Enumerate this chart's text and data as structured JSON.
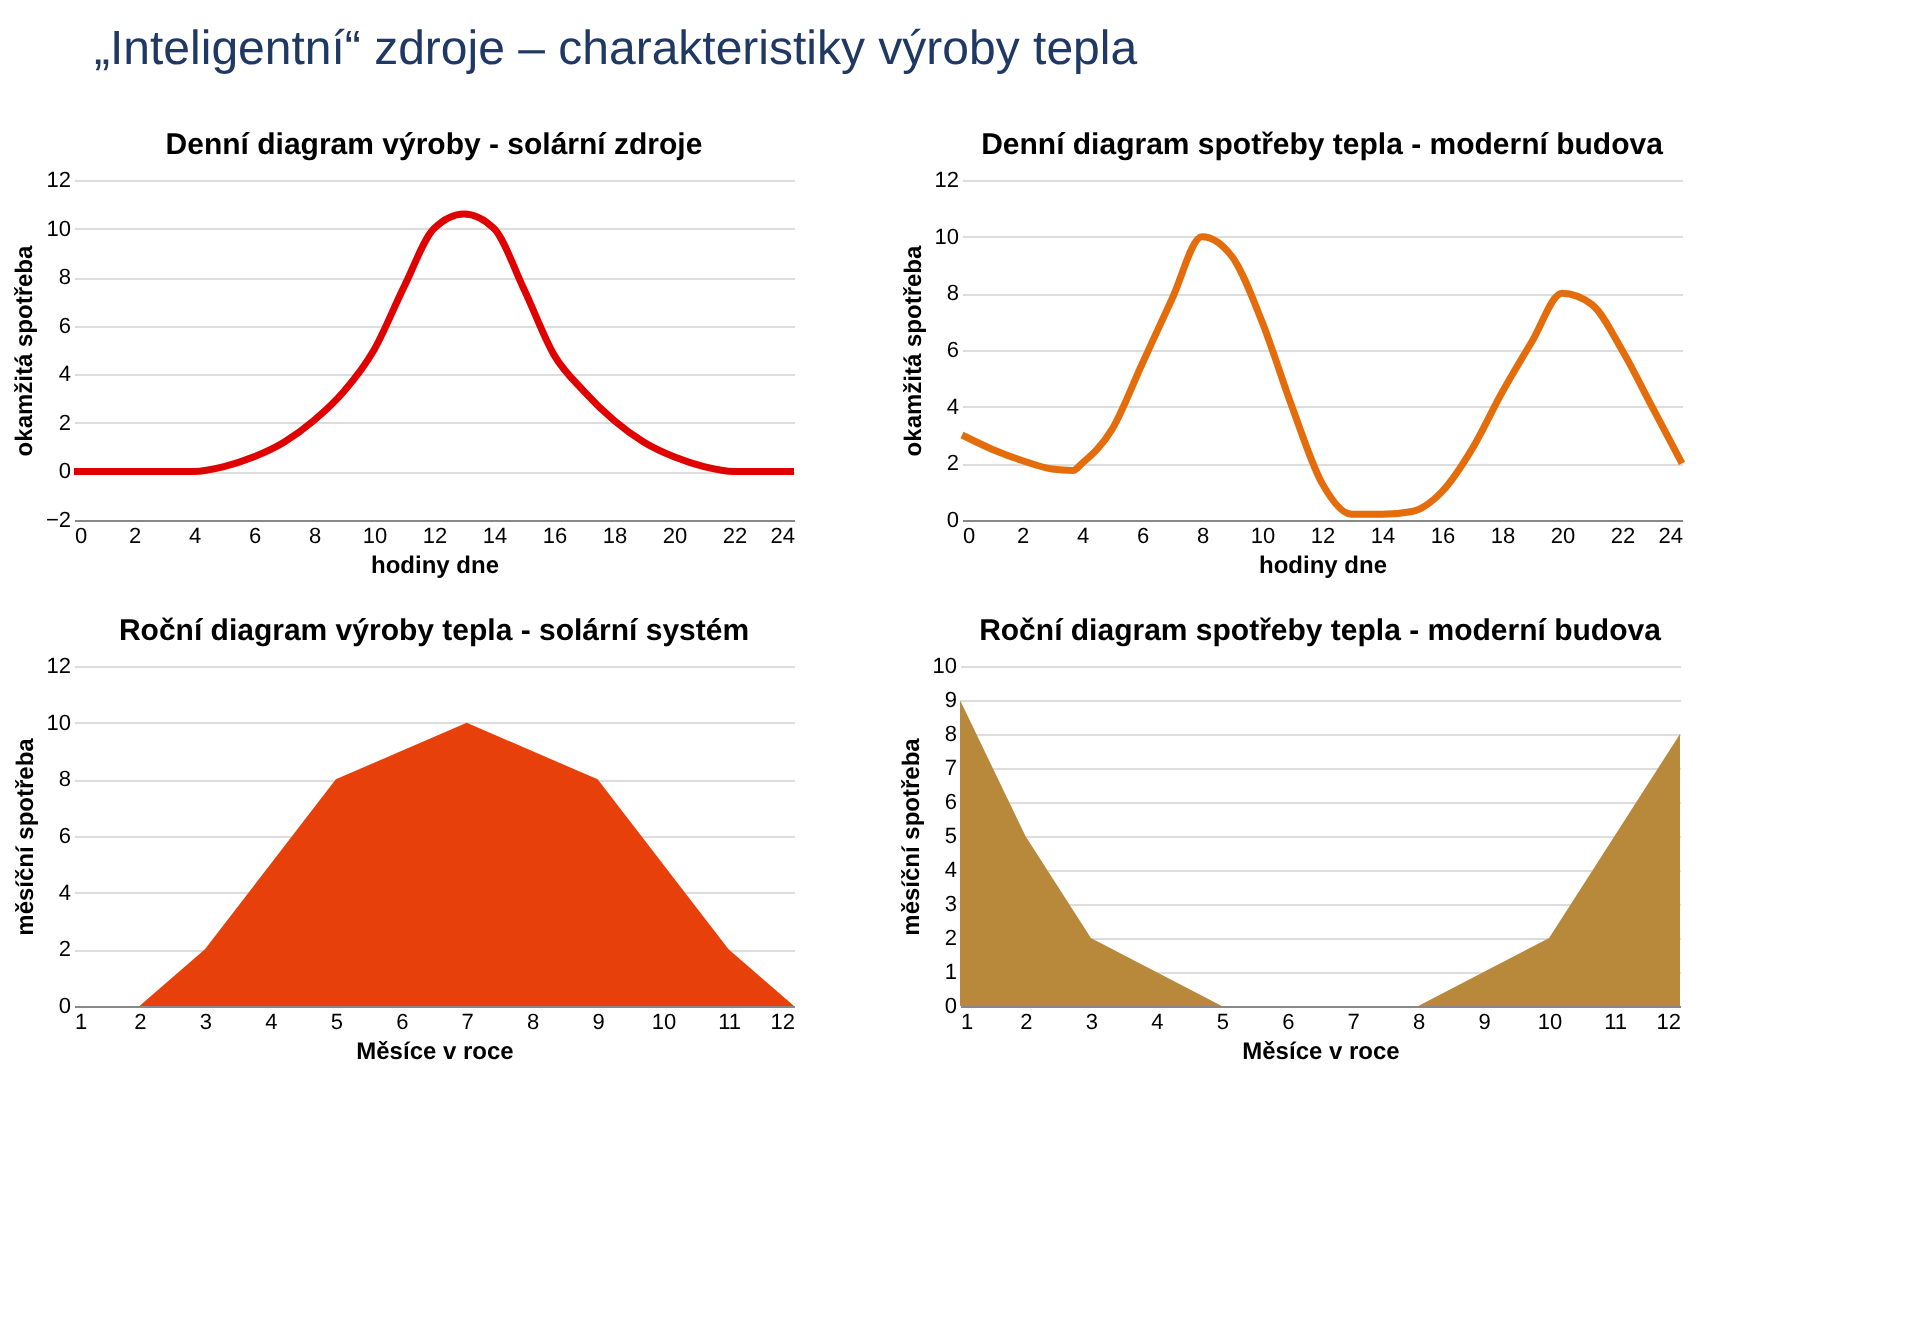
{
  "chart_data": [
    {
      "type": "other",
      "title": "„Inteligentní“ zdroje – charakteristiky výroby tepla"
    },
    {
      "type": "line",
      "title": "Denní diagram výroby - solární zdroje",
      "xlabel": "hodiny dne",
      "ylabel": "okamžitá spotřeba",
      "x": [
        0,
        2,
        3,
        4,
        5,
        6,
        7,
        8,
        9,
        10,
        11,
        12,
        13,
        14,
        15,
        16,
        17,
        18,
        19,
        20,
        21,
        22,
        23,
        24
      ],
      "series": [
        {
          "color": "#e00000",
          "values": [
            0,
            0,
            0,
            0,
            0.2,
            0.6,
            1.2,
            2.1,
            3.3,
            5,
            7.6,
            10,
            10.6,
            10,
            7.5,
            4.8,
            3.3,
            2.1,
            1.2,
            0.6,
            0.2,
            0,
            0,
            0
          ]
        }
      ],
      "xlim": [
        0,
        24
      ],
      "xticks": [
        0,
        2,
        4,
        6,
        8,
        10,
        12,
        14,
        16,
        18,
        20,
        22,
        24
      ],
      "ylim": [
        -2,
        12
      ],
      "yticks": [
        -2,
        0,
        2,
        4,
        6,
        8,
        10,
        12
      ],
      "grid": "y"
    },
    {
      "type": "line",
      "title": "Denní diagram spotřeby tepla - moderní budova",
      "xlabel": "hodiny dne",
      "ylabel": "okamžitá spotřeba",
      "x": [
        0,
        1,
        2,
        3,
        3.7,
        4,
        5,
        6,
        7,
        8,
        9,
        10,
        11,
        12,
        13,
        14,
        15,
        16,
        17,
        18,
        19,
        20,
        21,
        22,
        23,
        24
      ],
      "series": [
        {
          "color": "#e46c0a",
          "values": [
            3,
            2.5,
            2.1,
            1.8,
            1.75,
            2,
            3.2,
            5.5,
            7.8,
            10,
            9.3,
            7,
            4,
            1.3,
            0.2,
            0.2,
            0.3,
            1,
            2.5,
            4.5,
            6.3,
            8,
            7.6,
            6,
            4,
            2
          ]
        }
      ],
      "xlim": [
        0,
        24
      ],
      "xticks": [
        0,
        2,
        4,
        6,
        8,
        10,
        12,
        14,
        16,
        18,
        20,
        22,
        24
      ],
      "ylim": [
        0,
        12
      ],
      "yticks": [
        0,
        2,
        4,
        6,
        8,
        10,
        12
      ],
      "grid": "y"
    },
    {
      "type": "area",
      "title": "Roční diagram výroby tepla - solární systém",
      "xlabel": "Měsíce v roce",
      "ylabel": "měsíční spotřeba",
      "x": [
        2,
        3,
        4,
        5,
        6,
        7,
        8,
        9,
        10,
        11,
        12
      ],
      "series": [
        {
          "color": "#e8400a",
          "values": [
            0,
            2,
            5,
            8,
            9,
            10,
            9,
            8,
            5,
            2,
            0
          ]
        }
      ],
      "xlim": [
        1,
        12
      ],
      "xticks": [
        1,
        2,
        3,
        4,
        5,
        6,
        7,
        8,
        9,
        10,
        11,
        12
      ],
      "ylim": [
        0,
        12
      ],
      "yticks": [
        0,
        2,
        4,
        6,
        8,
        10,
        12
      ],
      "grid": "y"
    },
    {
      "type": "area",
      "title": "Roční diagram spotřeby tepla - moderní budova",
      "xlabel": "Měsíce v roce",
      "ylabel": "měsíční spotřeba",
      "x": [
        1,
        2,
        3,
        4,
        5,
        6,
        7,
        8,
        9,
        10,
        11,
        12
      ],
      "series": [
        {
          "color": "#b8893a",
          "values": [
            9,
            5,
            2,
            1,
            0,
            0,
            0,
            0,
            1,
            2,
            5,
            8
          ]
        }
      ],
      "xlim": [
        1,
        12
      ],
      "xticks": [
        1,
        2,
        3,
        4,
        5,
        6,
        7,
        8,
        9,
        10,
        11,
        12
      ],
      "ylim": [
        0,
        10
      ],
      "yticks": [
        0,
        1,
        2,
        3,
        4,
        5,
        6,
        7,
        8,
        9,
        10
      ],
      "grid": "y"
    }
  ]
}
